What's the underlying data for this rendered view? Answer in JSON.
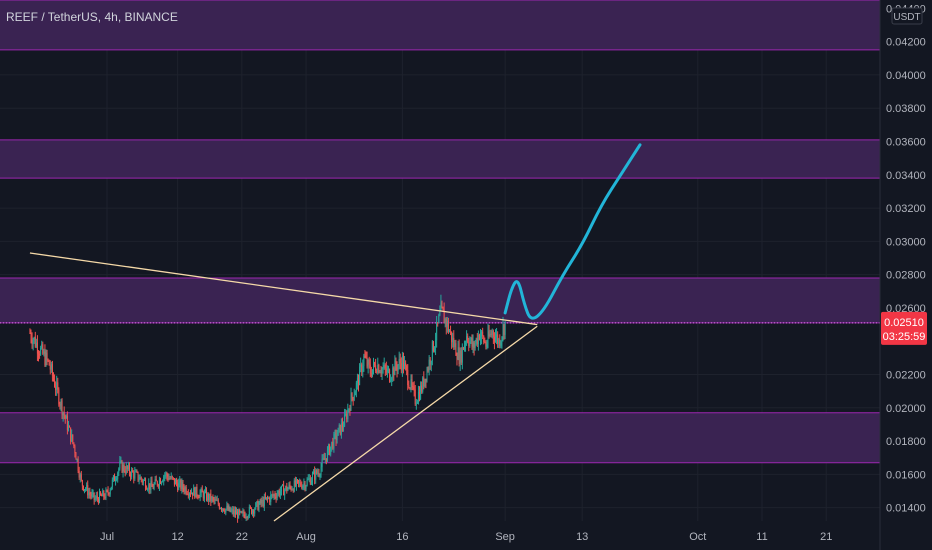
{
  "symbol": {
    "text": "REEF / TetherUS, 4h, BINANCE"
  },
  "colors": {
    "background": "#131722",
    "grid": "#1e222d",
    "candle_up": "#26a69a",
    "candle_down": "#ef5350",
    "zone_fill": "#3a2352",
    "zone_border": "#9c27b0",
    "trendline": "#f5d9a8",
    "projection": "#22b5d8",
    "price_tag": "#f23645",
    "axis_text": "#b2b5be"
  },
  "current_price": {
    "price": "0.02510",
    "countdown": "03:25:59",
    "value": 0.0251
  },
  "currency": "USDT",
  "chart_data": {
    "type": "candlestick",
    "title": "REEF / TetherUS, 4h, BINANCE",
    "ylim": [
      0.0132,
      0.0445
    ],
    "y_ticks": [
      "0.04400",
      "0.04200",
      "0.04000",
      "0.03800",
      "0.03600",
      "0.03400",
      "0.03200",
      "0.03000",
      "0.02800",
      "0.02600",
      "0.02200",
      "0.02000",
      "0.01800",
      "0.01600",
      "0.01400"
    ],
    "x_labels": [
      {
        "label": "Jul",
        "date": "2021-07-01"
      },
      {
        "label": "12",
        "date": "2021-07-12"
      },
      {
        "label": "22",
        "date": "2021-07-22"
      },
      {
        "label": "Aug",
        "date": "2021-08-01"
      },
      {
        "label": "16",
        "date": "2021-08-16"
      },
      {
        "label": "Sep",
        "date": "2021-09-01"
      },
      {
        "label": "13",
        "date": "2021-09-13"
      },
      {
        "label": "Oct",
        "date": "2021-10-01"
      },
      {
        "label": "11",
        "date": "2021-10-11"
      },
      {
        "label": "21",
        "date": "2021-10-21"
      }
    ],
    "zones": [
      {
        "from": 0.0415,
        "to": 0.0445
      },
      {
        "from": 0.0338,
        "to": 0.0361
      },
      {
        "from": 0.0251,
        "to": 0.0278
      },
      {
        "from": 0.0167,
        "to": 0.0197
      }
    ],
    "dotted_level": 0.0251,
    "trendlines": [
      {
        "from": [
          "2021-06-19",
          0.0293
        ],
        "to": [
          "2021-09-06",
          0.025
        ]
      },
      {
        "from": [
          "2021-07-27",
          0.0132
        ],
        "to": [
          "2021-09-06",
          0.0249
        ]
      }
    ],
    "projection_path": [
      [
        "2021-09-01",
        0.0257
      ],
      [
        "2021-09-02",
        0.0272
      ],
      [
        "2021-09-03",
        0.0278
      ],
      [
        "2021-09-04",
        0.0262
      ],
      [
        "2021-09-05",
        0.0252
      ],
      [
        "2021-09-07",
        0.0258
      ],
      [
        "2021-09-10",
        0.028
      ],
      [
        "2021-09-13",
        0.0298
      ],
      [
        "2021-09-16",
        0.0322
      ],
      [
        "2021-09-19",
        0.034
      ],
      [
        "2021-09-22",
        0.0358
      ]
    ],
    "candle_path": [
      [
        "2021-06-19",
        0.0245
      ],
      [
        "2021-06-21",
        0.0232
      ],
      [
        "2021-06-22",
        0.0226
      ],
      [
        "2021-06-24",
        0.02
      ],
      [
        "2021-06-26",
        0.0175
      ],
      [
        "2021-06-27",
        0.0155
      ],
      [
        "2021-06-29",
        0.0145
      ],
      [
        "2021-07-01",
        0.0148
      ],
      [
        "2021-07-03",
        0.0165
      ],
      [
        "2021-07-04",
        0.0163
      ],
      [
        "2021-07-06",
        0.0158
      ],
      [
        "2021-07-08",
        0.0152
      ],
      [
        "2021-07-10",
        0.016
      ],
      [
        "2021-07-12",
        0.0154
      ],
      [
        "2021-07-14",
        0.015
      ],
      [
        "2021-07-16",
        0.0148
      ],
      [
        "2021-07-18",
        0.0143
      ],
      [
        "2021-07-20",
        0.0138
      ],
      [
        "2021-07-22",
        0.0135
      ],
      [
        "2021-07-24",
        0.014
      ],
      [
        "2021-07-26",
        0.0145
      ],
      [
        "2021-07-28",
        0.015
      ],
      [
        "2021-07-30",
        0.0153
      ],
      [
        "2021-08-01",
        0.0155
      ],
      [
        "2021-08-03",
        0.0162
      ],
      [
        "2021-08-05",
        0.0178
      ],
      [
        "2021-08-07",
        0.0192
      ],
      [
        "2021-08-08",
        0.0205
      ],
      [
        "2021-08-09",
        0.0215
      ],
      [
        "2021-08-10",
        0.023
      ],
      [
        "2021-08-11",
        0.0222
      ],
      [
        "2021-08-12",
        0.0226
      ],
      [
        "2021-08-14",
        0.022
      ],
      [
        "2021-08-15",
        0.0225
      ],
      [
        "2021-08-16",
        0.0228
      ],
      [
        "2021-08-18",
        0.0205
      ],
      [
        "2021-08-19",
        0.0212
      ],
      [
        "2021-08-20",
        0.0225
      ],
      [
        "2021-08-21",
        0.024
      ],
      [
        "2021-08-22",
        0.0258
      ],
      [
        "2021-08-23",
        0.025
      ],
      [
        "2021-08-24",
        0.0238
      ],
      [
        "2021-08-25",
        0.023
      ],
      [
        "2021-08-26",
        0.0244
      ],
      [
        "2021-08-27",
        0.0236
      ],
      [
        "2021-08-28",
        0.0245
      ],
      [
        "2021-08-29",
        0.0238
      ],
      [
        "2021-08-30",
        0.0246
      ],
      [
        "2021-08-31",
        0.024
      ],
      [
        "2021-09-01",
        0.0251
      ]
    ]
  }
}
